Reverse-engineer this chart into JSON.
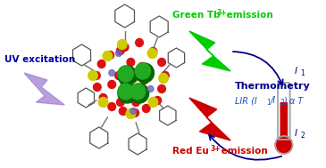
{
  "bg_color": "#ffffff",
  "uv_label": "UV excitation",
  "uv_color": "#a080d0",
  "green_color": "#00cc00",
  "green_label_1": "Green Tb",
  "green_sup": "3+",
  "green_label_2": " emission",
  "red_color": "#cc0000",
  "red_label_1": "Red Eu",
  "red_sup": "3+",
  "red_label_2": " emission",
  "thermo_title": "Thermometry",
  "lir_text": "LIR (I",
  "lir_sub1": "1",
  "lir_mid": "/I",
  "lir_sub2": "2",
  "lir_end": ") α T",
  "thermo_dark": "#00008b",
  "arrow_color": "#00008b",
  "I1": "I",
  "I1s": "1",
  "I2": "I",
  "I2s": "2",
  "label_color_uv": "#0000aa",
  "thermo_fill": "#cc0000",
  "thermo_tube": "#dddddd",
  "thermo_outline": "#aaaaaa"
}
